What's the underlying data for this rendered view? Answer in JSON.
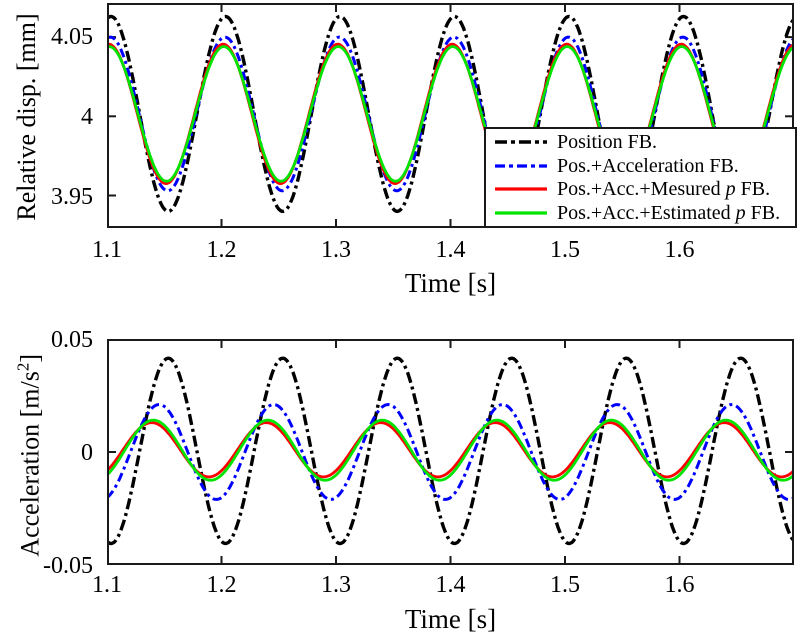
{
  "figure": {
    "background": "#ffffff",
    "axis_color": "#1a1a1a",
    "text_color": "#000000"
  },
  "chart_data": [
    {
      "type": "line",
      "panel": "top",
      "title": "",
      "xlabel": "Time [s]",
      "ylabel": "Relative disp. [mm]",
      "xlim": [
        1.1,
        1.7
      ],
      "ylim": [
        3.9295,
        4.0715
      ],
      "xticks": [
        1.1,
        1.2,
        1.3,
        1.4,
        1.5,
        1.6
      ],
      "xtick_labels": [
        "1.1",
        "1.2",
        "1.3",
        "1.4",
        "1.5",
        "1.6"
      ],
      "yticks": [
        3.95,
        4,
        4.05
      ],
      "ytick_labels": [
        "3.95",
        "4",
        "4.05"
      ],
      "grid": false,
      "legend_position": "inside lower right",
      "signal_model": "y(t) = mean + amplitude * cos(2*pi*(t - peak_time)/period)",
      "series": [
        {
          "name": "Position FB.",
          "color": "#000000",
          "line_style": "dash-dot",
          "dash": "11 4 3 4",
          "line_width": 3.4,
          "mean": 4.0015,
          "amplitude": 0.0615,
          "period": 0.1,
          "peak_time": 1.1035
        },
        {
          "name": "Pos.+Acceleration FB.",
          "color": "#0000ff",
          "line_style": "dash-dot",
          "dash": "9 4 3 4",
          "line_width": 3.0,
          "mean": 4.0015,
          "amplitude": 0.0485,
          "period": 0.1,
          "peak_time": 1.103
        },
        {
          "name": "Pos.+Acc.+Mesured p FB.",
          "color": "#ff0000",
          "line_style": "solid",
          "dash": "",
          "line_width": 2.8,
          "mean": 4.0015,
          "amplitude": 0.044,
          "period": 0.1,
          "peak_time": 1.1015
        },
        {
          "name": "Pos.+Acc.+Estimated p FB.",
          "color": "#00e400",
          "line_style": "solid",
          "dash": "",
          "line_width": 2.8,
          "mean": 4.0015,
          "amplitude": 0.0425,
          "period": 0.1,
          "peak_time": 1.102
        }
      ]
    },
    {
      "type": "line",
      "panel": "bottom",
      "title": "",
      "xlabel": "Time [s]",
      "ylabel": "Acceleration [m/s2]",
      "ylabel_parts": {
        "pre": "Acceleration [m/s",
        "sup": "2",
        "post": "]"
      },
      "xlim": [
        1.1,
        1.7
      ],
      "ylim": [
        -0.05,
        0.05
      ],
      "xticks": [
        1.1,
        1.2,
        1.3,
        1.4,
        1.5,
        1.6
      ],
      "xtick_labels": [
        "1.1",
        "1.2",
        "1.3",
        "1.4",
        "1.5",
        "1.6"
      ],
      "yticks": [
        -0.05,
        0,
        0.05
      ],
      "ytick_labels": [
        "-0.05",
        "0",
        "0.05"
      ],
      "grid": false,
      "legend_position": "none",
      "signal_model": "y(t) = mean + amplitude * cos(2*pi*(t - peak_time)/period)",
      "series": [
        {
          "name": "Position FB.",
          "color": "#000000",
          "line_style": "dash-dot",
          "dash": "11 4 3 4",
          "line_width": 3.4,
          "mean": 0.0005,
          "amplitude": 0.041,
          "period": 0.1,
          "peak_time": 1.1535
        },
        {
          "name": "Pos.+Acceleration FB.",
          "color": "#0000ff",
          "line_style": "dash-dot",
          "dash": "9 4 3 4",
          "line_width": 3.0,
          "mean": 0.0,
          "amplitude": 0.021,
          "period": 0.1,
          "peak_time": 1.1455
        },
        {
          "name": "Pos.+Acc.+Mesured p FB.",
          "color": "#ff0000",
          "line_style": "solid",
          "dash": "",
          "line_width": 2.8,
          "mean": 0.001,
          "amplitude": 0.012,
          "period": 0.1,
          "peak_time": 1.139
        },
        {
          "name": "Pos.+Acc.+Estimated p FB.",
          "color": "#00e400",
          "line_style": "solid",
          "dash": "",
          "line_width": 2.8,
          "mean": 0.0008,
          "amplitude": 0.0133,
          "period": 0.1,
          "peak_time": 1.1405
        }
      ]
    }
  ],
  "legend": {
    "entries": [
      {
        "label": "Position FB.",
        "pre": "Position FB.",
        "italic": "",
        "post": "",
        "color": "#000000",
        "dash": "12 4 4 4",
        "line_width": 3.6
      },
      {
        "label": "Pos.+Acceleration FB.",
        "pre": "Pos.+Acceleration FB.",
        "italic": "",
        "post": "",
        "color": "#0000ff",
        "dash": "10 4 4 4",
        "line_width": 3.2
      },
      {
        "label": "Pos.+Acc.+Mesured p FB.",
        "pre": "Pos.+Acc.+Mesured ",
        "italic": "p",
        "post": " FB.",
        "color": "#ff0000",
        "dash": "",
        "line_width": 3.2
      },
      {
        "label": "Pos.+Acc.+Estimated p FB.",
        "pre": "Pos.+Acc.+Estimated ",
        "italic": "p",
        "post": " FB.",
        "color": "#00e400",
        "dash": "",
        "line_width": 3.2
      }
    ]
  }
}
